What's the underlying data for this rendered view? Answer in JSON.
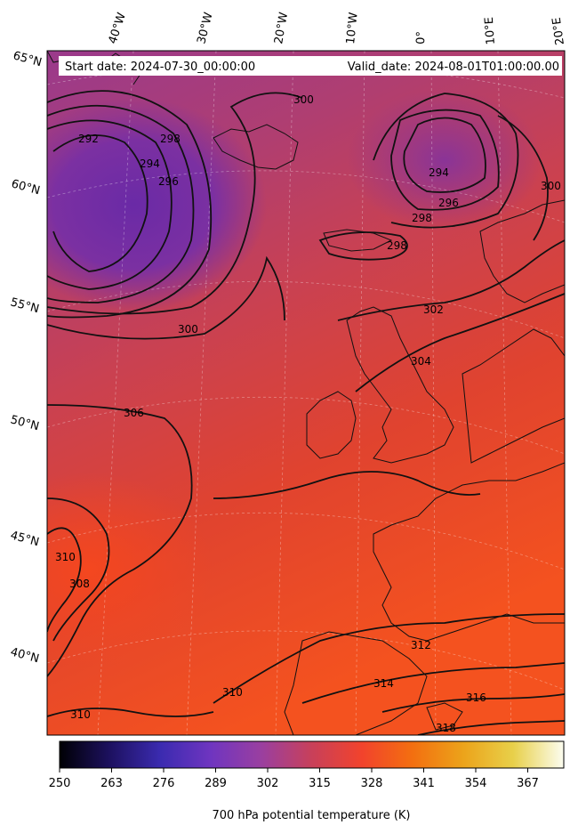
{
  "header": {
    "start_date": "Start date: 2024-07-30_00:00:00",
    "valid_date": "Valid_date: 2024-08-01T01:00:00.00"
  },
  "longitude_labels": [
    "40°W",
    "30°W",
    "20°W",
    "10°W",
    "0°",
    "10°E",
    "20°E"
  ],
  "latitude_labels": [
    "65°N",
    "60°N",
    "55°N",
    "50°N",
    "45°N",
    "40°N"
  ],
  "contour_labels": [
    "300",
    "292",
    "298",
    "294",
    "296",
    "294",
    "296",
    "298",
    "298",
    "300",
    "302",
    "304",
    "300",
    "306",
    "310",
    "308",
    "312",
    "314",
    "310",
    "310",
    "316",
    "318"
  ],
  "colorbar": {
    "label": "700 hPa potential temperature (K)",
    "min": 250,
    "max": 376,
    "ticks": [
      250,
      263,
      276,
      289,
      302,
      315,
      328,
      341,
      354,
      367
    ],
    "colors": [
      "#000004",
      "#1d1160",
      "#3b2bb0",
      "#6f35c0",
      "#9a3fa0",
      "#c8405a",
      "#f2432c",
      "#f36f10",
      "#eca31a",
      "#e8d04a",
      "#fcfdf0"
    ]
  },
  "map": {
    "variable": "700 hPa potential temperature",
    "units": "K",
    "contour_levels": [
      292,
      294,
      296,
      298,
      300,
      302,
      304,
      306,
      308,
      310,
      312,
      314,
      316,
      318
    ],
    "colors": {
      "cold_low": "#7a2fa4",
      "mid": "#a83d7c",
      "warm": "#e8422f",
      "hot": "#f55a1e"
    }
  }
}
